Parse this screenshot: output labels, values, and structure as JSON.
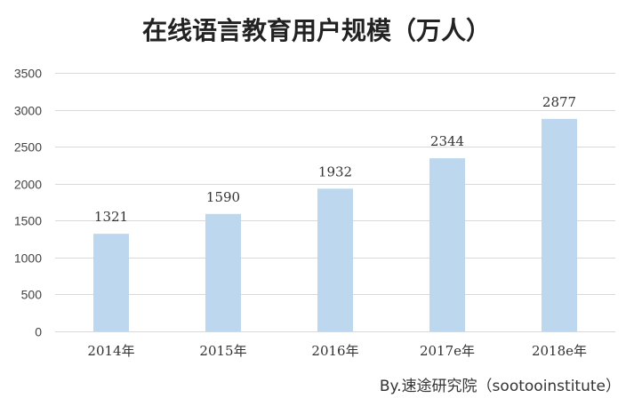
{
  "chart_data": {
    "type": "bar",
    "title": "在线语言教育用户规模（万人）",
    "categories": [
      "2014年",
      "2015年",
      "2016年",
      "2017e年",
      "2018e年"
    ],
    "values": [
      1321,
      1590,
      1932,
      2344,
      2877
    ],
    "ylim": [
      0,
      3500
    ],
    "yticks": [
      0,
      500,
      1000,
      1500,
      2000,
      2500,
      3000,
      3500
    ],
    "grid": true,
    "legend": "none",
    "bar_color": "#bdd7ee",
    "grid_color": "#d9d9d9"
  },
  "source_note": "By.速途研究院（sootooinstitute）"
}
